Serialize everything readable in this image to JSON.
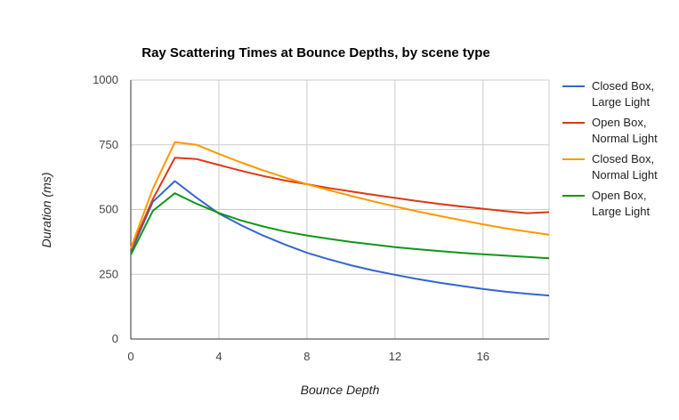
{
  "chart_data": {
    "type": "line",
    "title": "Ray Scattering Times at Bounce Depths, by scene type",
    "xlabel": "Bounce Depth",
    "ylabel": "Duration (ms)",
    "xlim": [
      0,
      19
    ],
    "ylim": [
      0,
      1000
    ],
    "x_ticks": [
      "0",
      "4",
      "8",
      "12",
      "16"
    ],
    "y_ticks": [
      "0",
      "250",
      "500",
      "750",
      "1000"
    ],
    "grid": true,
    "legend_position": "right",
    "x": [
      0,
      1,
      2,
      3,
      4,
      5,
      6,
      7,
      8,
      9,
      10,
      11,
      12,
      13,
      14,
      15,
      16,
      17,
      18,
      19
    ],
    "series": [
      {
        "name": [
          "Closed Box,",
          "Large Light"
        ],
        "color": "#3366cc",
        "values": [
          335,
          530,
          610,
          545,
          485,
          440,
          400,
          365,
          333,
          308,
          285,
          265,
          248,
          232,
          218,
          205,
          193,
          183,
          175,
          168
        ]
      },
      {
        "name": [
          "Open Box,",
          "Normal Light"
        ],
        "color": "#dc3912",
        "values": [
          345,
          540,
          700,
          695,
          672,
          650,
          630,
          612,
          598,
          583,
          570,
          557,
          545,
          533,
          522,
          512,
          503,
          494,
          486,
          490
        ]
      },
      {
        "name": [
          "Closed Box,",
          "Normal Light"
        ],
        "color": "#ff9900",
        "values": [
          350,
          580,
          760,
          750,
          715,
          682,
          652,
          624,
          598,
          575,
          553,
          532,
          512,
          493,
          476,
          459,
          443,
          428,
          415,
          403
        ]
      },
      {
        "name": [
          "Open Box,",
          "Large Light"
        ],
        "color": "#109618",
        "values": [
          325,
          495,
          563,
          522,
          487,
          458,
          435,
          415,
          400,
          387,
          375,
          365,
          355,
          347,
          340,
          333,
          327,
          322,
          317,
          312
        ]
      }
    ]
  }
}
